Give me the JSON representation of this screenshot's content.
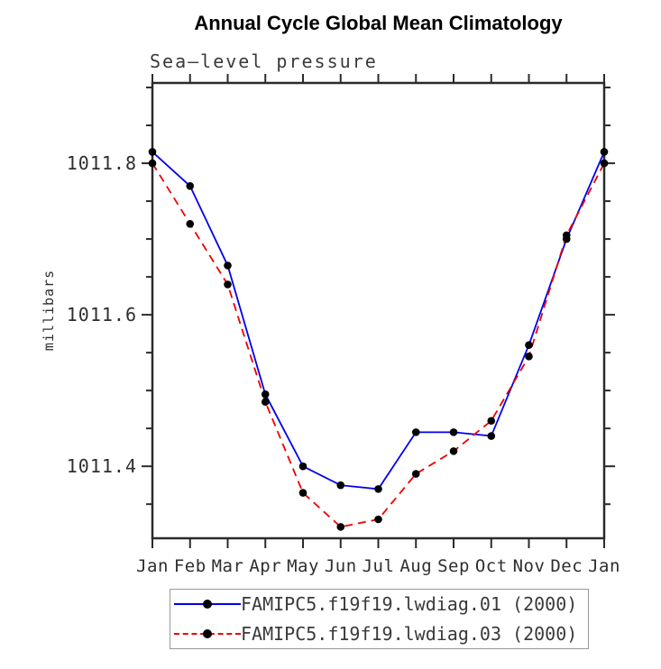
{
  "page": {
    "title": "Annual Cycle Global Mean Climatology",
    "subtitle": "Sea–level pressure",
    "y_axis_label": "millibars"
  },
  "legend": {
    "entries": [
      {
        "label": "FAMIPC5.f19f19.lwdiag.01 (2000)",
        "color": "#0000ee",
        "line_style": "solid"
      },
      {
        "label": "FAMIPC5.f19f19.lwdiag.03 (2000)",
        "color": "#ee0000",
        "line_style": "dashed"
      }
    ]
  },
  "colors": {
    "axis": "#2b2b2b",
    "tick_label": "#2e2e2e",
    "series_1": "#0000ee",
    "series_2": "#ee0000",
    "marker": "#000000",
    "legend_border": "#999999"
  },
  "chart_data": {
    "type": "line",
    "title": "Annual Cycle Global Mean Climatology",
    "subtitle": "Sea–level pressure",
    "xlabel": "",
    "ylabel": "millibars",
    "categories": [
      "Jan",
      "Feb",
      "Mar",
      "Apr",
      "May",
      "Jun",
      "Jul",
      "Aug",
      "Sep",
      "Oct",
      "Nov",
      "Dec",
      "Jan"
    ],
    "series": [
      {
        "name": "FAMIPC5.f19f19.lwdiag.01 (2000)",
        "color": "#0000ee",
        "line_style": "solid",
        "marker": "filled-circle",
        "marker_color": "#000000",
        "values": [
          1011.815,
          1011.77,
          1011.665,
          1011.495,
          1011.4,
          1011.375,
          1011.37,
          1011.445,
          1011.445,
          1011.44,
          1011.56,
          1011.7,
          1011.815
        ]
      },
      {
        "name": "FAMIPC5.f19f19.lwdiag.03 (2000)",
        "color": "#ee0000",
        "line_style": "dashed",
        "marker": "filled-circle",
        "marker_color": "#000000",
        "values": [
          1011.8,
          1011.72,
          1011.64,
          1011.485,
          1011.365,
          1011.32,
          1011.33,
          1011.39,
          1011.42,
          1011.46,
          1011.545,
          1011.705,
          1011.8
        ]
      }
    ],
    "ylim": [
      1011.305,
      1011.906
    ],
    "yticks_major": {
      "values": [
        1011.4,
        1011.6,
        1011.8
      ],
      "labels": [
        "1011.4",
        "1011.6",
        "1011.8"
      ]
    },
    "yticks_minor": [
      1011.35,
      1011.45,
      1011.5,
      1011.55,
      1011.65,
      1011.7,
      1011.75,
      1011.85,
      1011.9
    ],
    "grid": false,
    "legend_position": "bottom",
    "axes_frame": "box-with-outward-ticks"
  }
}
